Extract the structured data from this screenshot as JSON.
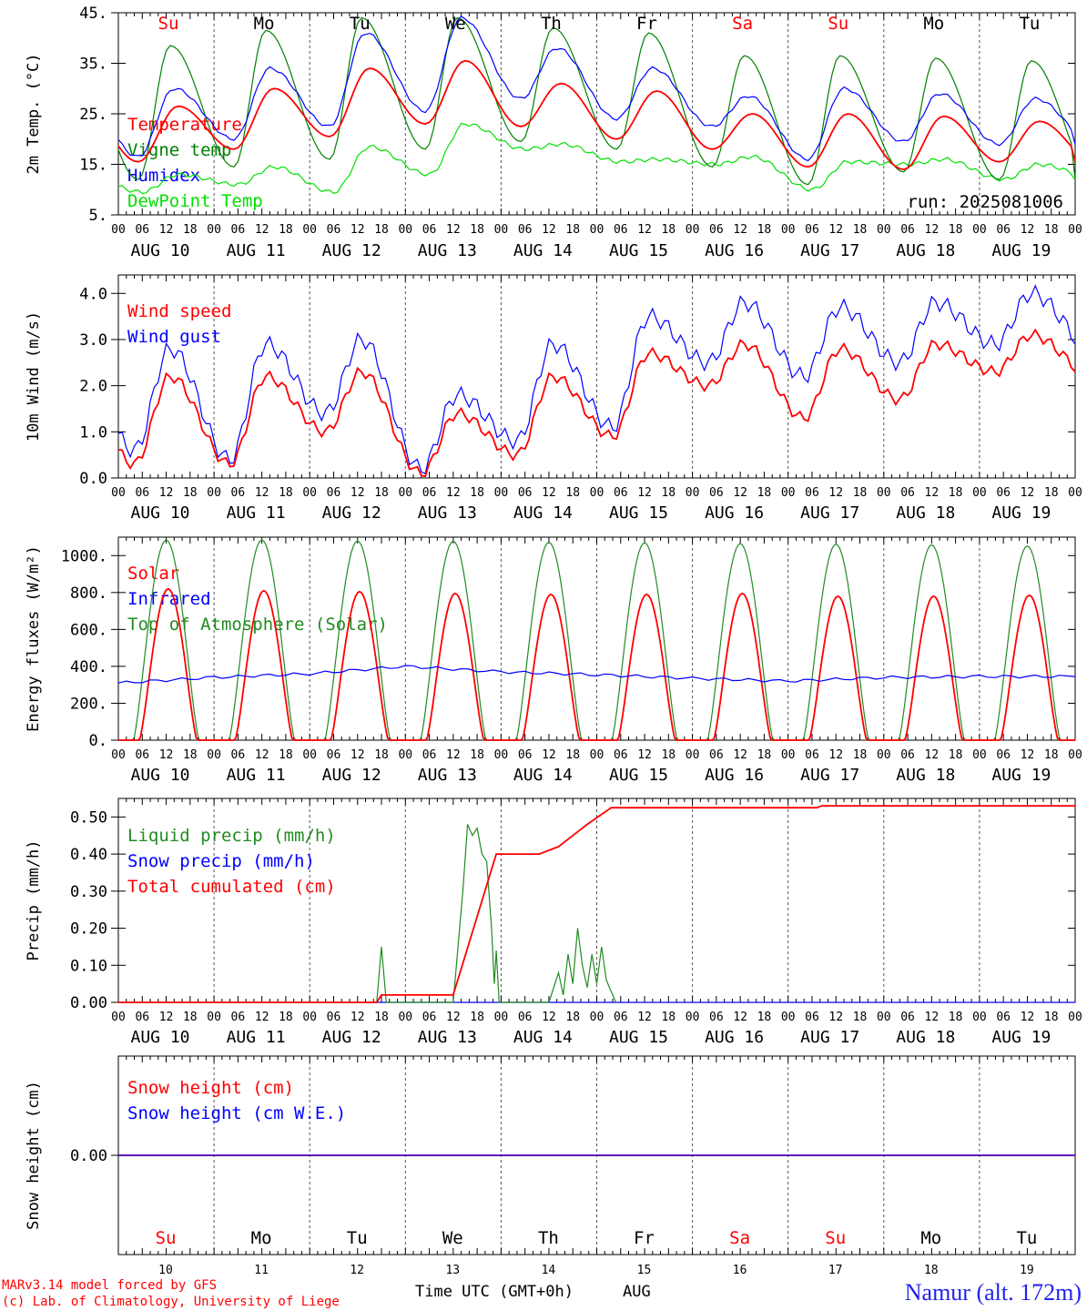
{
  "run_label": "run: 2025081006",
  "footer": {
    "model": "MARv3.14 model forced by GFS",
    "copyright": "(c) Lab. of Climatology, University of Liege",
    "xlabel": "Time UTC (GMT+0h)",
    "month": "AUG",
    "station": "Namur (alt. 172m)"
  },
  "days_top": [
    "Su",
    "Mo",
    "Tu",
    "We",
    "Th",
    "Fr",
    "Sa",
    "Su",
    "Mo",
    "Tu"
  ],
  "days_bottom": [
    "Su",
    "Mo",
    "Tu",
    "We",
    "Th",
    "Fr",
    "Sa",
    "Su",
    "Mo",
    "Tu"
  ],
  "day_numbers": [
    "10",
    "11",
    "12",
    "13",
    "14",
    "15",
    "16",
    "17",
    "18",
    "19"
  ],
  "date_labels": [
    "AUG 10",
    "AUG 11",
    "AUG 12",
    "AUG 13",
    "AUG 14",
    "AUG 15",
    "AUG 16",
    "AUG 17",
    "AUG 18",
    "AUG 19"
  ],
  "hour_ticks": [
    "00",
    "06",
    "12",
    "18"
  ],
  "hour_end": "00",
  "colors": {
    "red": "#ff0000",
    "blue": "#0000ff",
    "green": "#008000",
    "lightgreen": "#00e000",
    "darkgreen": "#228b22",
    "weekend": "#ff0000",
    "weekday": "#000000"
  },
  "chart_data": [
    {
      "type": "line",
      "ylabel": "2m Temp. (°C)",
      "yticks": [
        "45.",
        "35.",
        "25.",
        "15.",
        "5."
      ],
      "ylim": [
        5,
        45
      ],
      "legend": [
        "Temperature",
        "Vigne temp",
        "Humidex",
        "DewPoint Temp"
      ],
      "series": [
        {
          "name": "Temperature",
          "color": "#ff0000",
          "daily": {
            "min": [
              15.5,
              18,
              20.5,
              23,
              22.5,
              20,
              18,
              14.5,
              14,
              15.5
            ],
            "max": [
              26.5,
              30,
              34,
              35.5,
              31,
              29.5,
              25,
              25,
              24.5,
              23.5
            ]
          }
        },
        {
          "name": "Vigne temp",
          "color": "#008000",
          "daily": {
            "min": [
              12,
              14.5,
              16,
              18,
              19.5,
              18,
              14.5,
              11,
              13.5,
              12
            ],
            "max": [
              38.5,
              41.5,
              44,
              44,
              42,
              41,
              36.5,
              36.5,
              36,
              35.5
            ]
          }
        },
        {
          "name": "Humidex",
          "color": "#0000ff",
          "daily": {
            "min": [
              16.5,
              20,
              22.5,
              25.5,
              28,
              24,
              22.5,
              16,
              19.5,
              19
            ],
            "max": [
              30,
              34,
              41,
              44,
              38,
              34,
              28.5,
              30,
              29,
              28
            ]
          }
        },
        {
          "name": "DewPoint Temp",
          "color": "#00e000",
          "daily": {
            "min": [
              9.5,
              11,
              9.5,
              13,
              18,
              15.5,
              15,
              10,
              15,
              12
            ],
            "max": [
              13,
              14.5,
              18.5,
              23,
              19,
              16,
              16.5,
              15.5,
              16,
              15
            ]
          }
        }
      ],
      "xlim_days": [
        10,
        20
      ]
    },
    {
      "type": "line",
      "ylabel": "10m Wind (m/s)",
      "yticks": [
        "4.0",
        "3.0",
        "2.0",
        "1.0",
        "0.0"
      ],
      "ylim": [
        0,
        4.4
      ],
      "legend": [
        "Wind speed",
        "Wind gust"
      ],
      "series": [
        {
          "name": "Wind speed",
          "color": "#ff0000",
          "daily": {
            "min": [
              0.3,
              0.3,
              1.0,
              0.1,
              0.5,
              0.9,
              2.0,
              1.3,
              1.7,
              2.3
            ],
            "max": [
              2.2,
              2.2,
              2.3,
              1.4,
              2.2,
              2.7,
              2.9,
              2.8,
              2.9,
              3.1
            ]
          }
        },
        {
          "name": "Wind gust",
          "color": "#0000ff",
          "daily": {
            "min": [
              0.6,
              0.4,
              1.4,
              0.2,
              0.8,
              1.1,
              2.5,
              2.2,
              2.5,
              2.9
            ],
            "max": [
              2.8,
              2.9,
              3.0,
              1.8,
              2.9,
              3.5,
              3.8,
              3.7,
              3.8,
              4.0
            ]
          }
        }
      ],
      "xlim_days": [
        10,
        20
      ]
    },
    {
      "type": "line",
      "ylabel": "Energy fluxes (W/m²)",
      "yticks": [
        "1000.",
        "800.",
        "600.",
        "400.",
        "200.",
        "0."
      ],
      "ylim": [
        0,
        1100
      ],
      "legend": [
        "Solar",
        "Infrared",
        "Top of Atmosphere (Solar)"
      ],
      "series": [
        {
          "name": "Solar",
          "color": "#ff0000",
          "daily_peak": [
            820,
            810,
            805,
            795,
            790,
            790,
            795,
            780,
            780,
            785
          ]
        },
        {
          "name": "Infrared",
          "color": "#0000ff",
          "daily": [
            310,
            340,
            360,
            400,
            370,
            355,
            335,
            320,
            340,
            345
          ]
        },
        {
          "name": "Top of Atmosphere (Solar)",
          "color": "#228b22",
          "daily_peak": [
            1085,
            1085,
            1080,
            1078,
            1072,
            1070,
            1065,
            1062,
            1058,
            1052
          ]
        }
      ],
      "xlim_days": [
        10,
        20
      ]
    },
    {
      "type": "line",
      "ylabel": "Precip (mm/h)",
      "yticks": [
        "0.50",
        "0.40",
        "0.30",
        "0.20",
        "0.10",
        "0.00"
      ],
      "ylim": [
        0,
        0.55
      ],
      "legend": [
        "Liquid precip (mm/h)",
        "Snow precip (mm/h)",
        "Total cumulated (cm)"
      ],
      "series": [
        {
          "name": "Liquid precip (mm/h)",
          "color": "#228b22",
          "points": [
            [
              12.7,
              0
            ],
            [
              12.75,
              0.15
            ],
            [
              12.8,
              0
            ],
            [
              13.5,
              0
            ],
            [
              13.6,
              0.3
            ],
            [
              13.65,
              0.48
            ],
            [
              13.7,
              0.45
            ],
            [
              13.75,
              0.47
            ],
            [
              13.8,
              0.4
            ],
            [
              13.85,
              0.38
            ],
            [
              13.9,
              0.2
            ],
            [
              13.93,
              0.05
            ],
            [
              13.95,
              0.14
            ],
            [
              13.98,
              0
            ],
            [
              14.5,
              0
            ],
            [
              14.55,
              0.04
            ],
            [
              14.6,
              0.08
            ],
            [
              14.65,
              0.02
            ],
            [
              14.7,
              0.13
            ],
            [
              14.75,
              0.05
            ],
            [
              14.8,
              0.2
            ],
            [
              14.85,
              0.1
            ],
            [
              14.9,
              0.04
            ],
            [
              14.95,
              0.13
            ],
            [
              15.0,
              0.05
            ],
            [
              15.05,
              0.15
            ],
            [
              15.1,
              0.06
            ],
            [
              15.2,
              0
            ]
          ]
        },
        {
          "name": "Snow precip (mm/h)",
          "color": "#0000ff",
          "points": []
        },
        {
          "name": "Total cumulated (cm)",
          "color": "#ff0000",
          "points": [
            [
              10,
              0
            ],
            [
              12.7,
              0
            ],
            [
              12.75,
              0.02
            ],
            [
              13.5,
              0.02
            ],
            [
              13.95,
              0.4
            ],
            [
              14.4,
              0.4
            ],
            [
              14.6,
              0.42
            ],
            [
              14.9,
              0.48
            ],
            [
              15.15,
              0.525
            ],
            [
              17.3,
              0.525
            ],
            [
              17.35,
              0.53
            ],
            [
              20,
              0.53
            ]
          ]
        }
      ],
      "xlim_days": [
        10,
        20
      ]
    },
    {
      "type": "line",
      "ylabel": "Snow height (cm)",
      "yticks": [
        "0.00"
      ],
      "ylim": [
        -1,
        1
      ],
      "legend": [
        "Snow height (cm)",
        "Snow height (cm W.E.)"
      ],
      "series": [
        {
          "name": "Snow height (cm)",
          "color": "#ff0000",
          "points": [
            [
              10,
              0
            ],
            [
              20,
              0
            ]
          ]
        },
        {
          "name": "Snow height (cm W.E.)",
          "color": "#0000ff",
          "points": [
            [
              10,
              0
            ],
            [
              20,
              0
            ]
          ]
        }
      ],
      "xlim_days": [
        10,
        20
      ]
    }
  ]
}
